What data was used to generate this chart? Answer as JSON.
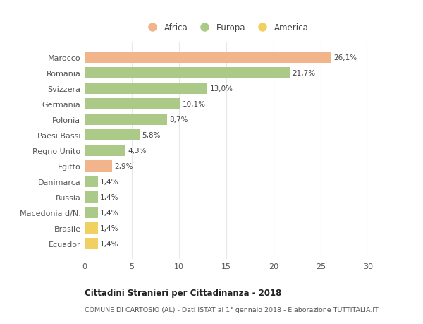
{
  "categories": [
    "Marocco",
    "Romania",
    "Svizzera",
    "Germania",
    "Polonia",
    "Paesi Bassi",
    "Regno Unito",
    "Egitto",
    "Danimarca",
    "Russia",
    "Macedonia d/N.",
    "Brasile",
    "Ecuador"
  ],
  "values": [
    26.1,
    21.7,
    13.0,
    10.1,
    8.7,
    5.8,
    4.3,
    2.9,
    1.4,
    1.4,
    1.4,
    1.4,
    1.4
  ],
  "labels": [
    "26,1%",
    "21,7%",
    "13,0%",
    "10,1%",
    "8,7%",
    "5,8%",
    "4,3%",
    "2,9%",
    "1,4%",
    "1,4%",
    "1,4%",
    "1,4%",
    "1,4%"
  ],
  "colors": [
    "#F2B48A",
    "#ABCA87",
    "#ABCA87",
    "#ABCA87",
    "#ABCA87",
    "#ABCA87",
    "#ABCA87",
    "#F2B48A",
    "#ABCA87",
    "#ABCA87",
    "#ABCA87",
    "#F0D060",
    "#F0D060"
  ],
  "legend_labels": [
    "Africa",
    "Europa",
    "America"
  ],
  "legend_colors": [
    "#F2B48A",
    "#ABCA87",
    "#F0D060"
  ],
  "title": "Cittadini Stranieri per Cittadinanza - 2018",
  "subtitle": "COMUNE DI CARTOSIO (AL) - Dati ISTAT al 1° gennaio 2018 - Elaborazione TUTTITALIA.IT",
  "xlim": [
    0,
    30
  ],
  "xticks": [
    0,
    5,
    10,
    15,
    20,
    25,
    30
  ],
  "background_color": "#ffffff",
  "grid_color": "#e8e8e8",
  "bar_height": 0.72
}
